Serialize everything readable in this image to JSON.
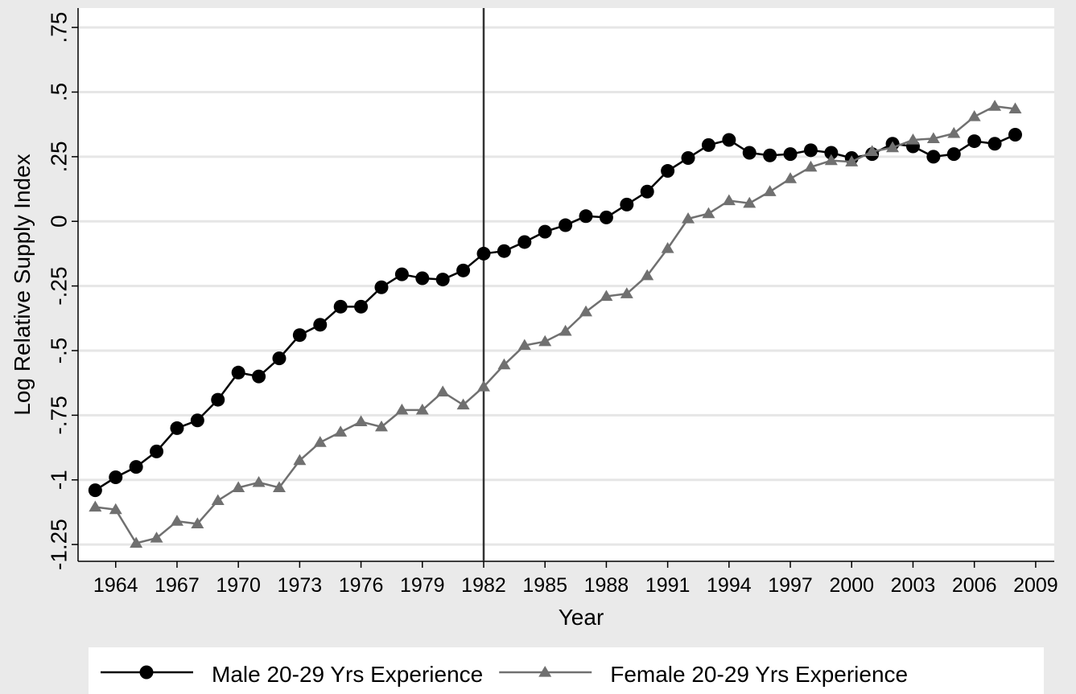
{
  "chart_data": {
    "type": "line",
    "x": [
      1963,
      1964,
      1965,
      1966,
      1967,
      1968,
      1969,
      1970,
      1971,
      1972,
      1973,
      1974,
      1975,
      1976,
      1977,
      1978,
      1979,
      1980,
      1981,
      1982,
      1983,
      1984,
      1985,
      1986,
      1987,
      1988,
      1989,
      1990,
      1991,
      1992,
      1993,
      1994,
      1995,
      1996,
      1997,
      1998,
      1999,
      2000,
      2001,
      2002,
      2003,
      2004,
      2005,
      2006,
      2007,
      2008
    ],
    "series": [
      {
        "name": "Male 20-29 Yrs Experience",
        "color": "#000000",
        "marker": "circle",
        "values": [
          -1.04,
          -0.99,
          -0.95,
          -0.89,
          -0.8,
          -0.77,
          -0.69,
          -0.585,
          -0.6,
          -0.53,
          -0.44,
          -0.4,
          -0.33,
          -0.33,
          -0.255,
          -0.205,
          -0.22,
          -0.225,
          -0.19,
          -0.125,
          -0.115,
          -0.08,
          -0.04,
          -0.015,
          0.02,
          0.015,
          0.065,
          0.115,
          0.195,
          0.245,
          0.295,
          0.315,
          0.265,
          0.255,
          0.26,
          0.275,
          0.265,
          0.245,
          0.26,
          0.3,
          0.29,
          0.25,
          0.26,
          0.31,
          0.3,
          0.335
        ]
      },
      {
        "name": "Female 20-29 Yrs Experience",
        "color": "#707070",
        "marker": "triangle",
        "values": [
          -1.105,
          -1.115,
          -1.245,
          -1.225,
          -1.16,
          -1.17,
          -1.08,
          -1.03,
          -1.01,
          -1.03,
          -0.925,
          -0.855,
          -0.815,
          -0.775,
          -0.795,
          -0.73,
          -0.73,
          -0.66,
          -0.71,
          -0.64,
          -0.555,
          -0.48,
          -0.465,
          -0.425,
          -0.35,
          -0.29,
          -0.28,
          -0.21,
          -0.105,
          0.01,
          0.03,
          0.08,
          0.07,
          0.115,
          0.165,
          0.21,
          0.235,
          0.23,
          0.27,
          0.285,
          0.315,
          0.32,
          0.34,
          0.405,
          0.445,
          0.435
        ]
      }
    ],
    "x_label": "Year",
    "y_label": "Log Relative Supply Index",
    "xlim": [
      1962.16,
      2009.91
    ],
    "ylim": [
      -1.315,
      0.825
    ],
    "xticks": [
      1964,
      1967,
      1970,
      1973,
      1976,
      1979,
      1982,
      1985,
      1988,
      1991,
      1994,
      1997,
      2000,
      2003,
      2006,
      2009
    ],
    "yticks": [
      {
        "value": -1.25,
        "label": "-1.25"
      },
      -1,
      {
        "value": -0.75,
        "label": "-.75"
      },
      {
        "value": -0.5,
        "label": "-.5"
      },
      {
        "value": -0.25,
        "label": "-.25"
      },
      0,
      {
        "value": 0.25,
        "label": ".25"
      },
      {
        "value": 0.5,
        "label": ".5"
      },
      {
        "value": 0.75,
        "label": ".75"
      }
    ],
    "xline": 1982,
    "grid": true,
    "legend": "bottom"
  }
}
